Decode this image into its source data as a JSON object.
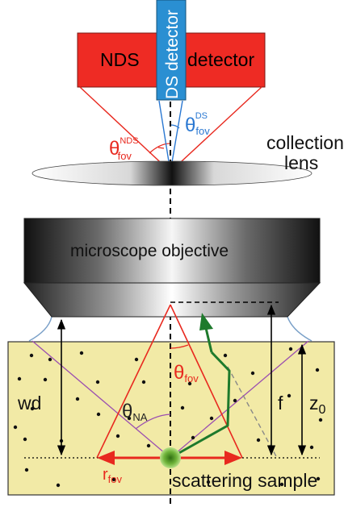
{
  "labels": {
    "nds_detector_left": "NDS",
    "nds_detector_right": "detector",
    "ds_detector": "DS detector",
    "collection_lens_line1": "collection",
    "collection_lens_line2": "lens",
    "microscope_objective": "microscope objective",
    "scattering_sample": "scattering sample",
    "wd": "wd",
    "f": "f",
    "z0_base": "z",
    "z0_sub": "0",
    "theta": "θ",
    "theta_fov_ds_sub": "fov",
    "theta_fov_ds_sup": "DS",
    "theta_fov_nds_sub": "fov",
    "theta_fov_nds_sup": "NDS",
    "theta_fov_sub": "fov",
    "theta_na_sub": "NA",
    "r_fov_base": "r",
    "r_fov_sub": "fov"
  },
  "colors": {
    "nds_detector_fill": "#ee2b24",
    "ds_detector_fill": "#2a8fd2",
    "sample_fill": "#f2eaa6",
    "red_lines": "#e8291f",
    "blue_lines": "#2a78d2",
    "purple_lines": "#9b4fb0",
    "green_path": "#1e7a2c",
    "scatter_source": "#6fb43a"
  }
}
